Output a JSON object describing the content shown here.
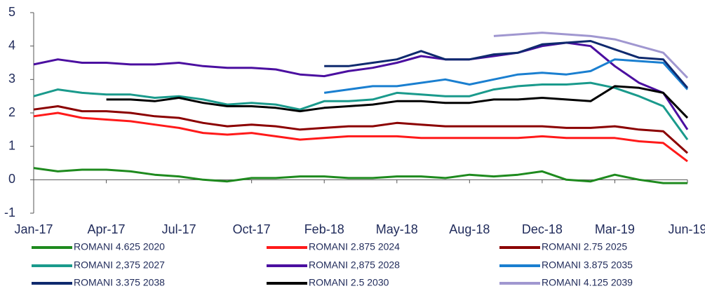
{
  "chart_data": {
    "type": "line",
    "categories": [
      "Jan-17",
      null,
      null,
      "Apr-17",
      null,
      null,
      "Jul-17",
      null,
      null,
      "Oct-17",
      null,
      null,
      "Feb-18",
      null,
      null,
      "May-18",
      null,
      null,
      "Aug-18",
      null,
      null,
      "Dec-18",
      null,
      null,
      "Mar-19",
      null,
      null,
      "Jun-19"
    ],
    "ylim": [
      -1,
      5
    ],
    "yticks": [
      -1,
      0,
      1,
      2,
      3,
      4,
      5
    ],
    "legend": "bottom",
    "series": [
      {
        "name": "ROMANI 4.625  2020",
        "color": "#1e8a1e",
        "values": [
          0.35,
          0.25,
          0.3,
          0.3,
          0.25,
          0.15,
          0.1,
          0.0,
          -0.05,
          0.05,
          0.05,
          0.1,
          0.1,
          0.05,
          0.05,
          0.1,
          0.1,
          0.05,
          0.15,
          0.1,
          0.15,
          0.25,
          0.0,
          -0.05,
          0.15,
          0.0,
          -0.1,
          -0.1
        ]
      },
      {
        "name": "ROMANI 2.875  2024",
        "color": "#ff1a1a",
        "values": [
          1.9,
          2.0,
          1.85,
          1.8,
          1.75,
          1.65,
          1.55,
          1.4,
          1.35,
          1.4,
          1.3,
          1.2,
          1.25,
          1.3,
          1.3,
          1.3,
          1.25,
          1.25,
          1.25,
          1.25,
          1.25,
          1.3,
          1.25,
          1.25,
          1.25,
          1.15,
          1.1,
          0.55
        ]
      },
      {
        "name": "ROMANI 2.75 2025",
        "color": "#8b0000",
        "values": [
          2.1,
          2.2,
          2.05,
          2.05,
          2.0,
          1.9,
          1.85,
          1.7,
          1.6,
          1.65,
          1.6,
          1.5,
          1.55,
          1.6,
          1.6,
          1.7,
          1.65,
          1.6,
          1.6,
          1.6,
          1.6,
          1.6,
          1.55,
          1.55,
          1.6,
          1.5,
          1.45,
          0.8
        ]
      },
      {
        "name": "ROMANI 2,375 2027",
        "color": "#1a9a8c",
        "values": [
          2.5,
          2.7,
          2.6,
          2.55,
          2.55,
          2.45,
          2.5,
          2.4,
          2.25,
          2.3,
          2.25,
          2.1,
          2.35,
          2.35,
          2.4,
          2.6,
          2.55,
          2.5,
          2.5,
          2.7,
          2.8,
          2.85,
          2.85,
          2.9,
          2.75,
          2.5,
          2.2,
          1.2
        ]
      },
      {
        "name": "ROMANI 2,875 2028",
        "color": "#4b0fa0",
        "values": [
          3.45,
          3.6,
          3.5,
          3.5,
          3.45,
          3.45,
          3.5,
          3.4,
          3.35,
          3.35,
          3.3,
          3.15,
          3.1,
          3.25,
          3.35,
          3.5,
          3.7,
          3.6,
          3.6,
          3.7,
          3.8,
          4.0,
          4.1,
          4.0,
          3.4,
          2.9,
          2.6,
          1.5
        ]
      },
      {
        "name": "ROMANI 3.875 2035",
        "color": "#1a7fd0",
        "values": [
          null,
          null,
          null,
          null,
          null,
          null,
          null,
          null,
          null,
          null,
          null,
          null,
          2.6,
          2.7,
          2.8,
          2.8,
          2.9,
          3.0,
          2.85,
          3.0,
          3.15,
          3.2,
          3.15,
          3.25,
          3.6,
          3.55,
          3.5,
          2.7
        ]
      },
      {
        "name": "ROMANI 3.375 2038",
        "color": "#0f2a6e",
        "values": [
          null,
          null,
          null,
          null,
          null,
          null,
          null,
          null,
          null,
          null,
          null,
          null,
          3.4,
          3.4,
          3.5,
          3.6,
          3.85,
          3.6,
          3.6,
          3.75,
          3.8,
          4.05,
          4.1,
          4.15,
          3.9,
          3.65,
          3.6,
          2.75
        ]
      },
      {
        "name": "ROMANI 2.5 2030",
        "color": "#000000",
        "values": [
          null,
          null,
          null,
          2.4,
          2.4,
          2.35,
          2.45,
          2.3,
          2.2,
          2.2,
          2.15,
          2.05,
          2.15,
          2.2,
          2.25,
          2.35,
          2.35,
          2.3,
          2.3,
          2.4,
          2.4,
          2.45,
          2.4,
          2.35,
          2.8,
          2.75,
          2.6,
          1.85
        ]
      },
      {
        "name": "ROMANI 4.125 2039",
        "color": "#a097d0",
        "values": [
          null,
          null,
          null,
          null,
          null,
          null,
          null,
          null,
          null,
          null,
          null,
          null,
          null,
          null,
          null,
          null,
          null,
          null,
          null,
          4.3,
          4.35,
          4.4,
          4.35,
          4.3,
          4.2,
          4.0,
          3.8,
          3.05
        ]
      }
    ]
  }
}
